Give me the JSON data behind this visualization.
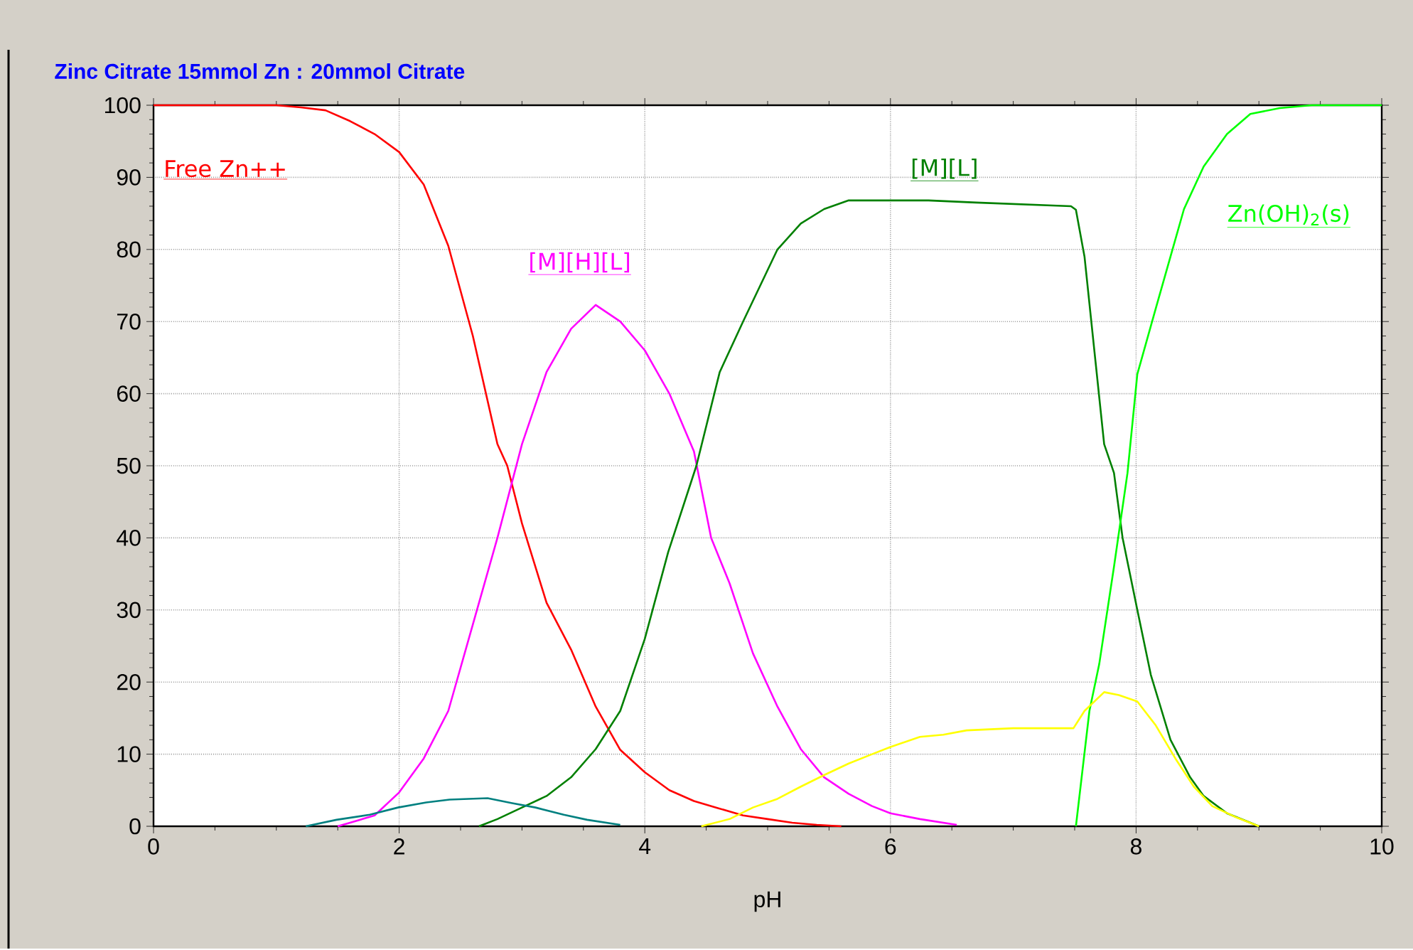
{
  "chart_data": {
    "type": "line",
    "title": "Zinc Citrate  15mmol Zn : 20mmol Citrate",
    "xlabel": "pH",
    "xlim": [
      0,
      10
    ],
    "ylim": [
      0,
      100
    ],
    "xticks": [
      0,
      2,
      4,
      6,
      8,
      10
    ],
    "yticks": [
      0,
      10,
      20,
      30,
      40,
      50,
      60,
      70,
      80,
      90,
      100
    ],
    "grid": true,
    "marker": "none",
    "line_style": "solid",
    "series": [
      {
        "name": "Free Zn++",
        "color": "#ff0000",
        "x": [
          0,
          1.0,
          1.2,
          1.4,
          1.6,
          1.8,
          2.0,
          2.2,
          2.4,
          2.6,
          2.8,
          2.88,
          3.0,
          3.2,
          3.4,
          3.6,
          3.8,
          4.0,
          4.2,
          4.4,
          4.6,
          4.8,
          5.0,
          5.2,
          5.4,
          5.6
        ],
        "values": [
          100,
          100,
          99.7,
          99.3,
          97.8,
          96,
          93.5,
          89,
          80.5,
          68,
          53,
          50,
          42,
          31,
          24.5,
          16.6,
          10.6,
          7.5,
          5,
          3.5,
          2.5,
          1.5,
          1,
          0.5,
          0.2,
          0
        ]
      },
      {
        "name": "[M][H][L]",
        "color": "#ff00ff",
        "x": [
          1.5,
          1.6,
          1.8,
          2.0,
          2.2,
          2.4,
          2.6,
          2.8,
          3.0,
          3.2,
          3.4,
          3.6,
          3.8,
          4.0,
          4.2,
          4.4,
          4.54,
          4.69,
          4.88,
          5.08,
          5.27,
          5.46,
          5.66,
          5.85,
          6.0,
          6.24,
          6.54
        ],
        "values": [
          0,
          0.5,
          1.5,
          4.7,
          9.4,
          16,
          28,
          40,
          53,
          63,
          69,
          72.3,
          70,
          66,
          60,
          52,
          40,
          33.7,
          24,
          16.6,
          10.7,
          6.8,
          4.5,
          2.8,
          1.8,
          1,
          0.2
        ]
      },
      {
        "name": "[M][L]",
        "color": "#008000",
        "x": [
          2.65,
          2.8,
          3.0,
          3.2,
          3.4,
          3.6,
          3.8,
          4.0,
          4.19,
          4.42,
          4.61,
          4.8,
          5.08,
          5.27,
          5.46,
          5.66,
          6.31,
          6.7,
          7.47,
          7.51,
          7.58,
          7.66,
          7.74,
          7.82,
          7.89,
          8.01,
          8.12,
          8.28,
          8.44,
          8.55,
          8.74,
          8.93,
          9.0
        ],
        "values": [
          0,
          1,
          2.6,
          4.2,
          6.8,
          10.7,
          16,
          26,
          38,
          50,
          63,
          70,
          80,
          83.6,
          85.6,
          86.8,
          86.8,
          86.5,
          86,
          85.5,
          79,
          66,
          53,
          49,
          40,
          30,
          21,
          12,
          6.8,
          4.2,
          1.8,
          0.5,
          0
        ]
      },
      {
        "name": "Zn(OH)$_{2}$(s)",
        "color": "#00ff00",
        "x": [
          7.51,
          7.62,
          7.7,
          7.82,
          7.93,
          8.01,
          8.16,
          8.28,
          8.39,
          8.55,
          8.74,
          8.93,
          9.17,
          9.43,
          10
        ],
        "values": [
          0,
          16,
          22.5,
          36,
          49,
          62.7,
          71.8,
          79,
          85.6,
          91.5,
          96,
          98.8,
          99.6,
          100,
          100
        ]
      },
      {
        "color": "#008080",
        "x": [
          1.24,
          1.49,
          1.76,
          1.99,
          2.22,
          2.41,
          2.72,
          2.92,
          3.11,
          3.34,
          3.53,
          3.8
        ],
        "values": [
          0,
          0.9,
          1.6,
          2.6,
          3.3,
          3.7,
          3.9,
          3.2,
          2.6,
          1.6,
          0.9,
          0.2
        ]
      },
      {
        "color": "#ffff00",
        "x": [
          4.46,
          4.69,
          4.88,
          5.08,
          5.27,
          5.46,
          5.66,
          5.85,
          6.0,
          6.24,
          6.43,
          6.62,
          7.0,
          7.49,
          7.58,
          7.74,
          7.86,
          8.01,
          8.16,
          8.32,
          8.47,
          8.62,
          8.82,
          9.0
        ],
        "values": [
          0,
          1,
          2.6,
          3.8,
          5.5,
          7.1,
          8.7,
          10,
          11,
          12.4,
          12.7,
          13.3,
          13.6,
          13.6,
          16,
          18.6,
          18.2,
          17.3,
          14,
          9.4,
          5.5,
          2.8,
          1.2,
          0
        ]
      }
    ]
  }
}
